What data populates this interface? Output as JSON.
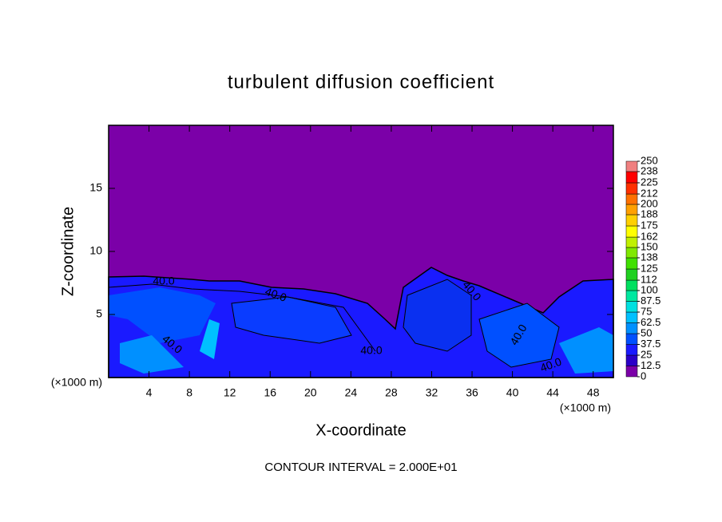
{
  "chart_data": {
    "type": "contour",
    "title": "turbulent diffusion coefficient",
    "x_label": "X-coordinate",
    "y_label": "Z-coordinate",
    "x_unit_labels": [
      "(×1000 m)",
      "(×1000 m)"
    ],
    "footer": "CONTOUR INTERVAL = 2.000E+01",
    "xlim": [
      0,
      50
    ],
    "xticks": [
      4,
      8,
      12,
      16,
      20,
      24,
      28,
      32,
      36,
      40,
      44,
      48
    ],
    "ylim": [
      0,
      20
    ],
    "yticks": [
      5,
      10,
      15
    ],
    "contour_labels": [
      "40.0",
      "40.0",
      "40.0",
      "40.0",
      "40.0",
      "40.0",
      "40.0"
    ],
    "colorbar": {
      "levels": [
        0,
        12.5,
        25,
        37.5,
        50,
        62.5,
        75,
        87.5,
        100,
        112,
        125,
        138,
        150,
        162,
        175,
        188,
        200,
        212,
        225,
        238,
        250
      ],
      "colors": [
        "#7b00a8",
        "#2a00c8",
        "#1a1aff",
        "#0050ff",
        "#0090ff",
        "#00c0ff",
        "#00e0e0",
        "#00e8a0",
        "#00e060",
        "#20d020",
        "#40e000",
        "#80e800",
        "#c0f000",
        "#ffff00",
        "#ffd000",
        "#ffa000",
        "#ff7000",
        "#ff3000",
        "#ff0000",
        "#f08080"
      ]
    }
  }
}
